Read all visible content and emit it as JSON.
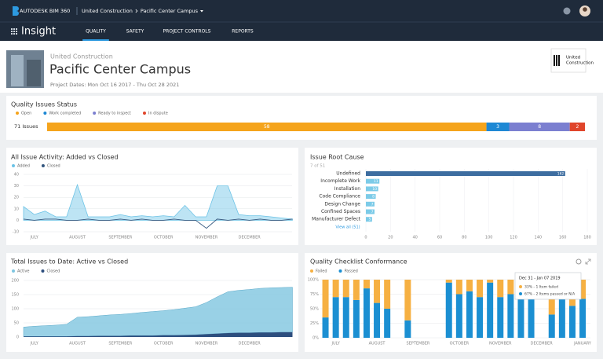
{
  "header": {
    "brand": "AUTODESK BIM 360",
    "company": "United Construction",
    "project": "Pacific Center Campus"
  },
  "nav": {
    "app": "Insight",
    "tabs": [
      "QUALITY",
      "SAFETY",
      "PROJECT CONTROLS",
      "REPORTS"
    ],
    "active": 0
  },
  "project": {
    "company": "United Construction",
    "name": "Pacific Center Campus",
    "dates": "Project Dates: Mon Oct 16 2017 - Thu Oct 28 2021",
    "logo_text": [
      "United",
      "Construction"
    ]
  },
  "status": {
    "type": "stacked_bar",
    "title": "Quality Issues Status",
    "total_label": "71 Issues",
    "series": [
      {
        "name": "Open",
        "color": "#f5a41c",
        "values": [
          58
        ]
      },
      {
        "name": "Work completed",
        "color": "#1e88d4",
        "values": [
          3
        ]
      },
      {
        "name": "Ready to inspect",
        "color": "#7b7fd0",
        "values": [
          8
        ]
      },
      {
        "name": "In dispute",
        "color": "#e0452b",
        "values": [
          2
        ]
      }
    ]
  },
  "activity": {
    "type": "area_line",
    "title": "All Issue Activity: Added vs Closed",
    "categories": [
      null,
      "JULY",
      null,
      null,
      null,
      "AUGUST",
      null,
      null,
      null,
      "SEPTEMBER",
      null,
      null,
      null,
      "OCTOBER",
      null,
      null,
      null,
      "NOVEMBER",
      null,
      null,
      null,
      "DECEMBER",
      null,
      null,
      null,
      null
    ],
    "series": [
      {
        "name": "Added",
        "color": "#6cc3e6",
        "values": [
          12,
          5,
          8,
          3,
          3,
          31,
          3,
          3,
          3,
          5,
          3,
          4,
          3,
          4,
          3,
          13,
          3,
          3,
          30,
          30,
          5,
          4,
          4,
          3,
          2,
          1
        ]
      },
      {
        "name": "Closed",
        "color": "#34577f",
        "values": [
          1,
          0,
          1,
          1,
          0,
          0,
          1,
          0,
          0,
          1,
          0,
          1,
          0,
          0,
          1,
          0,
          0,
          -7,
          1,
          0,
          1,
          0,
          1,
          0,
          0,
          1
        ]
      }
    ],
    "ylim": [
      -10,
      40
    ],
    "yticks": [
      -10,
      0,
      10,
      20,
      30,
      40
    ]
  },
  "root_cause": {
    "type": "hbar",
    "title": "Issue Root Cause",
    "subtitle": "7 of 51",
    "link": "View all (51)",
    "categories": [
      "Undefined",
      "Incomplete Work",
      "Installation",
      "Code Compliance",
      "Design Change",
      "Confined Spaces",
      "Manufacturer Defect"
    ],
    "values": [
      162,
      11,
      10,
      8,
      7,
      7,
      5
    ],
    "colors": [
      "#3d6da0",
      "#7ccbe8",
      "#7ccbe8",
      "#7ccbe8",
      "#7ccbe8",
      "#7ccbe8",
      "#7ccbe8"
    ],
    "xlim": [
      0,
      180
    ],
    "xticks": [
      0,
      20,
      40,
      60,
      80,
      100,
      120,
      140,
      160,
      180
    ]
  },
  "totals": {
    "type": "stacked_area",
    "title": "Total Issues to Date: Active vs Closed",
    "categories": [
      null,
      "JULY",
      null,
      null,
      null,
      "AUGUST",
      null,
      null,
      null,
      "SEPTEMBER",
      null,
      null,
      null,
      "OCTOBER",
      null,
      null,
      null,
      "NOVEMBER",
      null,
      null,
      null,
      "DECEMBER",
      null,
      null,
      null,
      null
    ],
    "series": [
      {
        "name": "Active",
        "color": "#7fc6e0",
        "values": [
          33,
          36,
          38,
          40,
          43,
          67,
          69,
          71,
          74,
          76,
          78,
          82,
          85,
          87,
          91,
          95,
          99,
          112,
          130,
          146,
          150,
          153,
          156,
          158,
          158,
          159
        ]
      },
      {
        "name": "Closed",
        "color": "#2d4e7e",
        "values": [
          2,
          2,
          2,
          2,
          2,
          3,
          3,
          4,
          4,
          4,
          5,
          5,
          5,
          6,
          6,
          7,
          8,
          10,
          12,
          14,
          15,
          15,
          16,
          16,
          17,
          17
        ]
      }
    ],
    "ylim": [
      0,
      200
    ],
    "yticks": [
      0,
      50,
      100,
      150,
      200
    ]
  },
  "checklist": {
    "type": "stacked_bar",
    "title": "Quality Checklist Conformance",
    "categories": [
      null,
      "JULY",
      null,
      null,
      null,
      "AUGUST",
      null,
      null,
      null,
      "SEPTEMBER",
      null,
      null,
      null,
      "OCTOBER",
      null,
      null,
      null,
      "NOVEMBER",
      null,
      null,
      null,
      "DECEMBER",
      null,
      null,
      null,
      "JANUARY"
    ],
    "series": [
      {
        "name": "Failed",
        "color": "#f6b042",
        "values": [
          65,
          30,
          30,
          35,
          15,
          40,
          50,
          null,
          70,
          null,
          null,
          null,
          5,
          25,
          20,
          30,
          5,
          30,
          25,
          20,
          15,
          null,
          60,
          25,
          45,
          33
        ]
      },
      {
        "name": "Passed",
        "color": "#1b8fd2",
        "values": [
          35,
          70,
          70,
          65,
          85,
          60,
          50,
          null,
          30,
          null,
          null,
          null,
          95,
          75,
          80,
          70,
          95,
          70,
          75,
          80,
          85,
          null,
          40,
          75,
          55,
          67
        ]
      }
    ],
    "ylim": [
      0,
      100
    ],
    "yticks": [
      {
        "value": 0,
        "label": "0%"
      },
      {
        "value": 25,
        "label": "25%"
      },
      {
        "value": 50,
        "label": "50%"
      },
      {
        "value": 75,
        "label": "75%"
      },
      {
        "value": 100,
        "label": "100%"
      }
    ],
    "tooltip": {
      "title": "Dec 31 - Jan 07 2019",
      "lines": [
        "33% - 1 Item failed",
        "67% - 2 Items passed or N/A"
      ]
    }
  }
}
